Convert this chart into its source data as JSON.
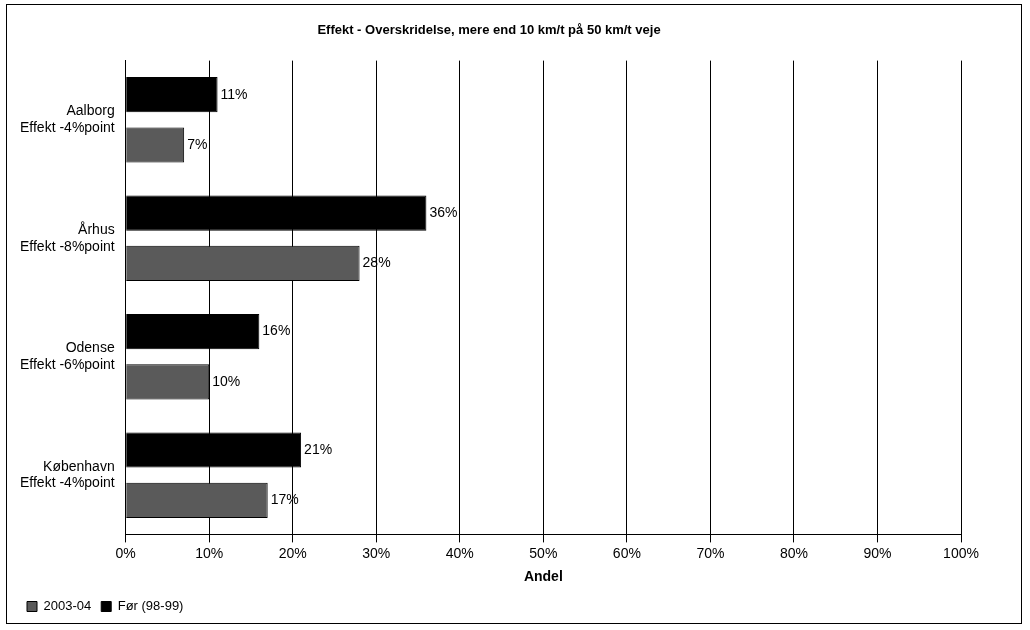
{
  "chart_data": {
    "type": "bar",
    "orientation": "horizontal",
    "title": "Effekt - Overskridelse, mere end 10 km/t på 50 km/t veje",
    "xlabel": "Andel",
    "categories": [
      "Aalborg\nEffekt -4%point",
      "Århus\nEffekt -8%point",
      "Odense\nEffekt -6%point",
      "København\nEffekt -4%point"
    ],
    "series": [
      {
        "name": "Før (98-99)",
        "color": "#000000",
        "values": [
          11,
          36,
          16,
          21
        ],
        "value_labels": [
          "11%",
          "36%",
          "16%",
          "21%"
        ]
      },
      {
        "name": "2003-04",
        "color": "#5a5a5a",
        "values": [
          7,
          28,
          10,
          17
        ],
        "value_labels": [
          "7%",
          "28%",
          "10%",
          "17%"
        ]
      }
    ],
    "xlim": [
      0,
      100
    ],
    "xticks": [
      {
        "value": 0,
        "label": "0%"
      },
      {
        "value": 10,
        "label": "10%"
      },
      {
        "value": 20,
        "label": "20%"
      },
      {
        "value": 30,
        "label": "30%"
      },
      {
        "value": 40,
        "label": "40%"
      },
      {
        "value": 50,
        "label": "50%"
      },
      {
        "value": 60,
        "label": "60%"
      },
      {
        "value": 70,
        "label": "70%"
      },
      {
        "value": 80,
        "label": "80%"
      },
      {
        "value": 90,
        "label": "90%"
      },
      {
        "value": 100,
        "label": "100%"
      }
    ],
    "grid": "x",
    "legend": "bottom left"
  }
}
